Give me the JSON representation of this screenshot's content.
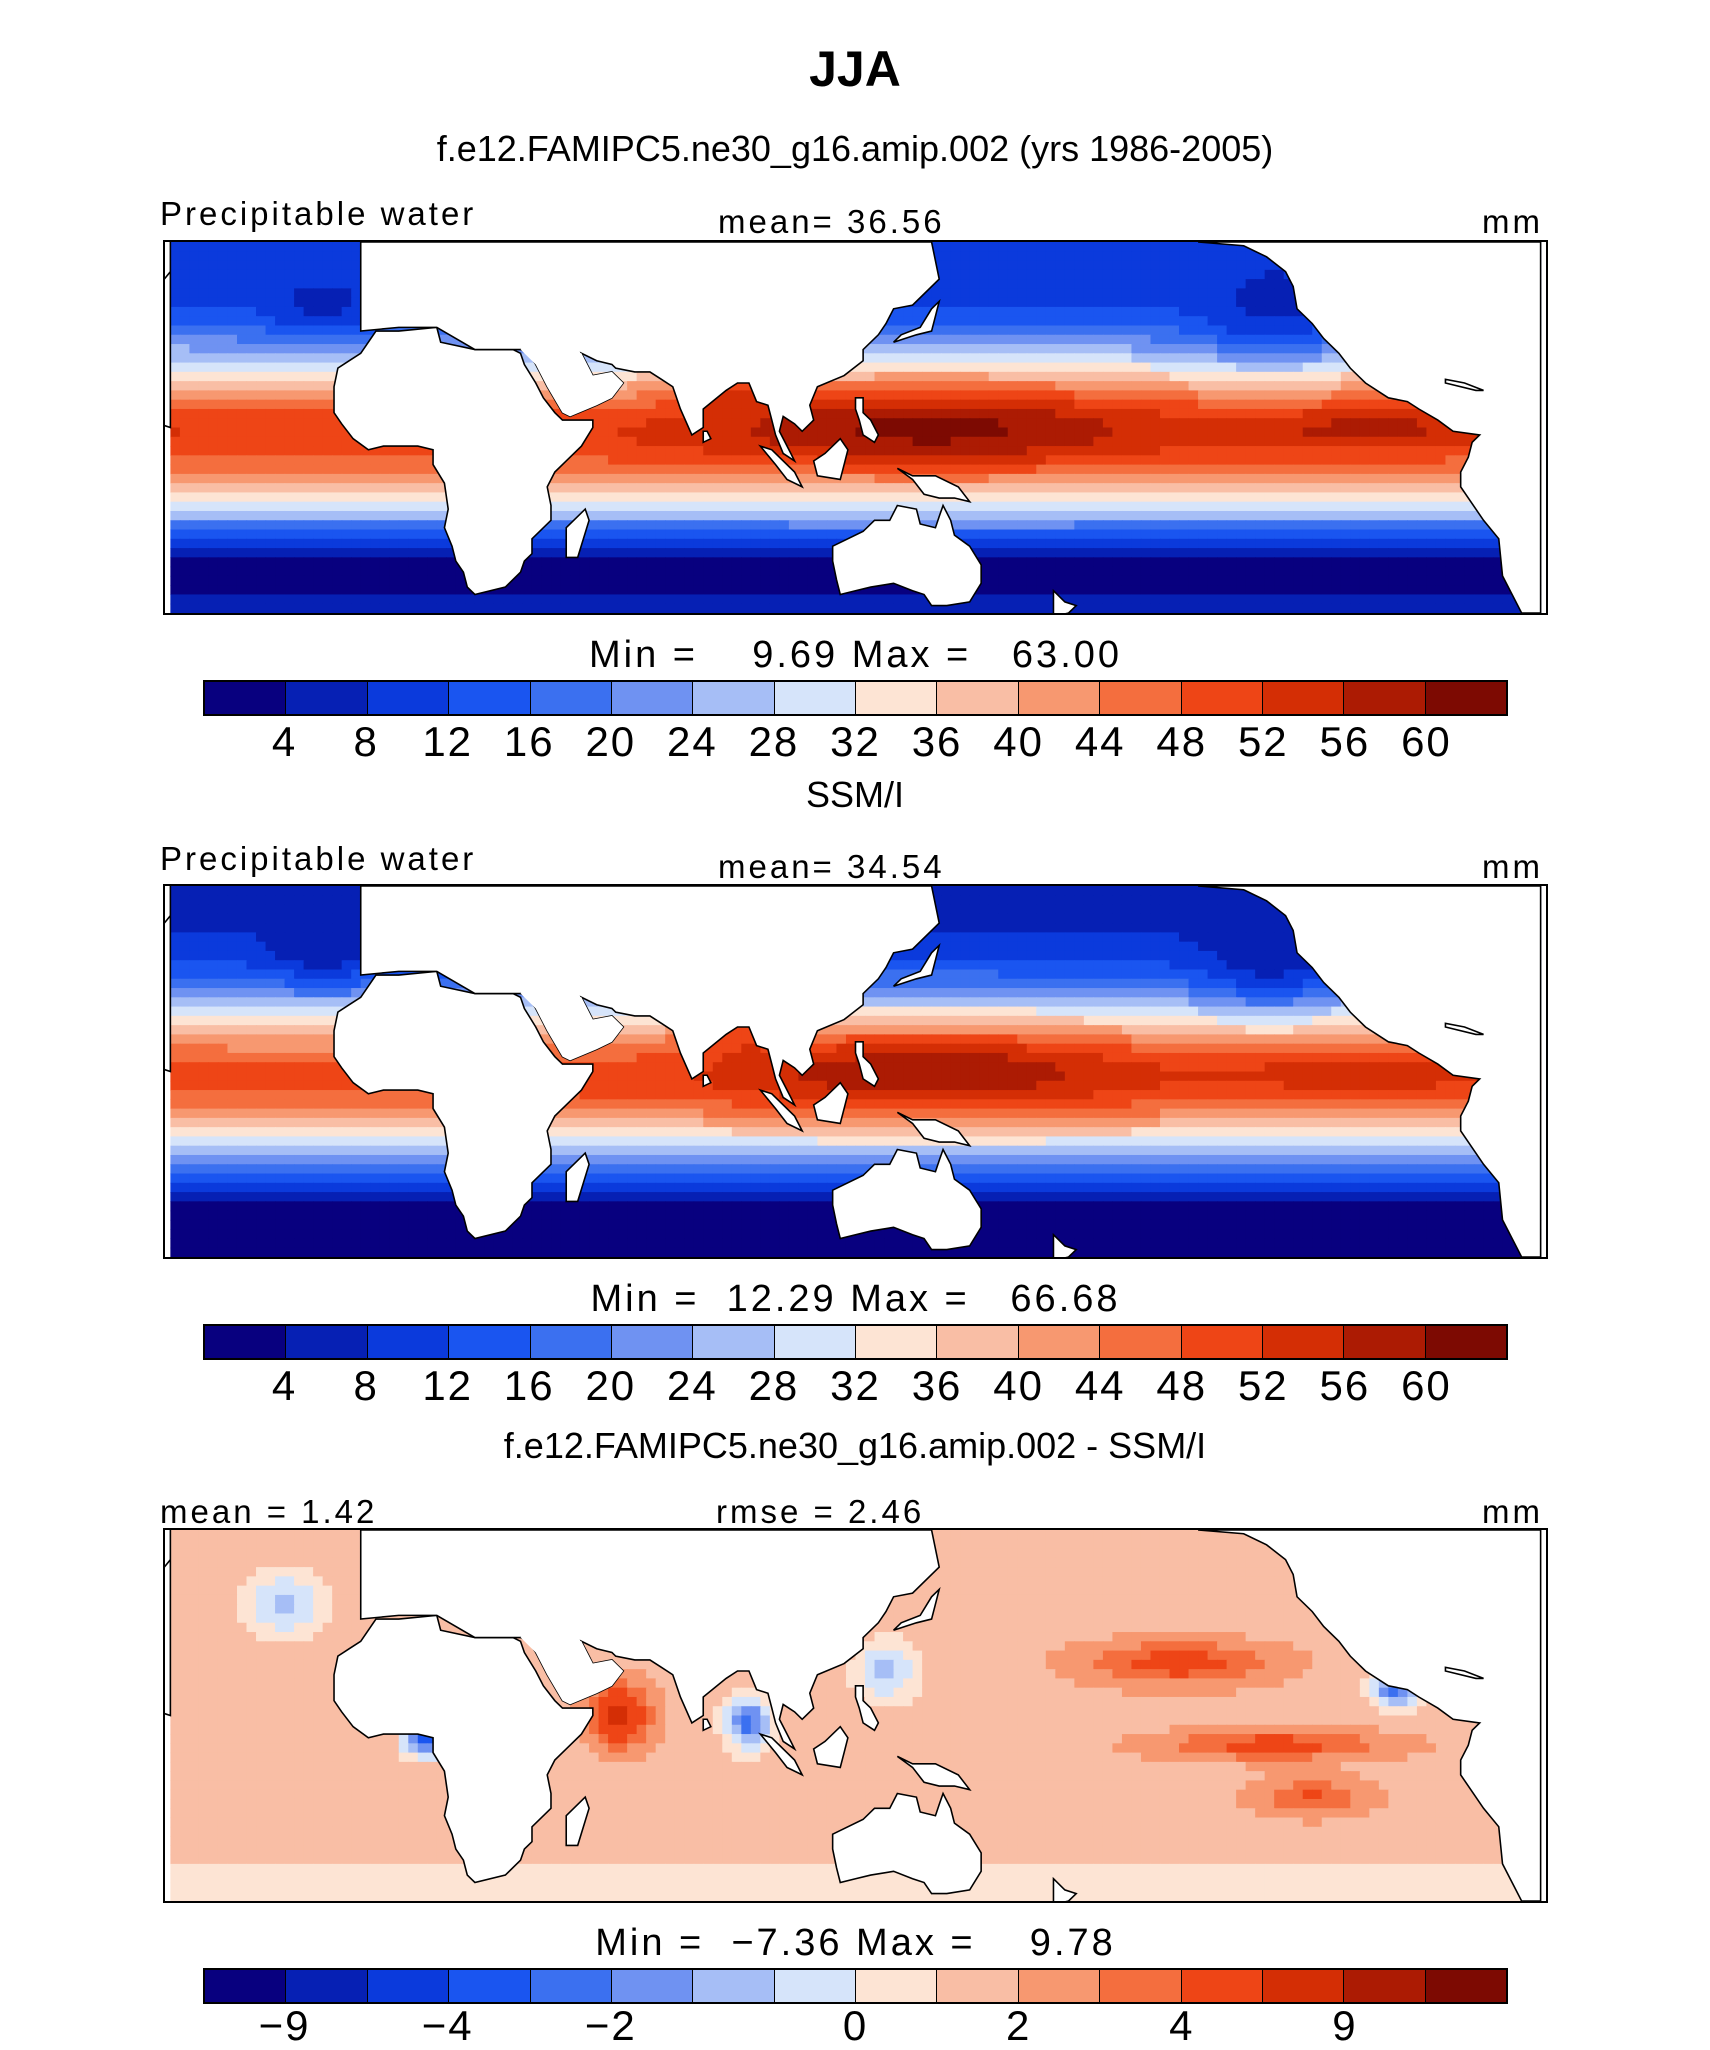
{
  "figure": {
    "title": "JJA"
  },
  "palette": [
    "#08007f",
    "#0620b4",
    "#0b3adc",
    "#1a55f0",
    "#3b70f0",
    "#6f92f2",
    "#a6bef6",
    "#d6e4fa",
    "#fde4d4",
    "#f9bea5",
    "#f79870",
    "#f46e3e",
    "#ee4516",
    "#d42e05",
    "#ac1b03",
    "#7d0a02"
  ],
  "land_color": "#ffffff",
  "panels": [
    {
      "title": "f.e12.FAMIPC5.ne30_g16.amip.002 (yrs 1986-2005)",
      "left_label": "Precipitable water",
      "center_label": "mean=  36.56",
      "right_label": "mm",
      "minmax": "Min =    9.69 Max =   63.00",
      "colorbar_ticks": [
        "4",
        "8",
        "12",
        "16",
        "20",
        "24",
        "28",
        "32",
        "36",
        "40",
        "44",
        "48",
        "52",
        "56",
        "60"
      ]
    },
    {
      "title": "SSM/I",
      "left_label": "Precipitable water",
      "center_label": "mean=  34.54",
      "right_label": "mm",
      "minmax": "Min =  12.29 Max =   66.68",
      "colorbar_ticks": [
        "4",
        "8",
        "12",
        "16",
        "20",
        "24",
        "28",
        "32",
        "36",
        "40",
        "44",
        "48",
        "52",
        "56",
        "60"
      ]
    },
    {
      "title": "f.e12.FAMIPC5.ne30_g16.amip.002 - SSM/I",
      "left_label": "mean =   1.42",
      "center_label": "rmse =   2.46",
      "right_label": "mm",
      "minmax": "Min =  −7.36 Max =    9.78",
      "colorbar_ticks": [
        "−9",
        "−4",
        "−2",
        "0",
        "2",
        "4",
        "9"
      ]
    }
  ],
  "chart_data": [
    {
      "type": "heatmap",
      "title": "f.e12.FAMIPC5.ne30_g16.amip.002 (yrs 1986-2005)",
      "variable": "Precipitable water",
      "units": "mm",
      "mean": 36.56,
      "min": 9.69,
      "max": 63.0,
      "colorbar_levels": [
        4,
        8,
        12,
        16,
        20,
        24,
        28,
        32,
        36,
        40,
        44,
        48,
        52,
        56,
        60
      ],
      "lon_range": [
        -60,
        300
      ],
      "lat_range": [
        -40,
        60
      ]
    },
    {
      "type": "heatmap",
      "title": "SSM/I",
      "variable": "Precipitable water",
      "units": "mm",
      "mean": 34.54,
      "min": 12.29,
      "max": 66.68,
      "colorbar_levels": [
        4,
        8,
        12,
        16,
        20,
        24,
        28,
        32,
        36,
        40,
        44,
        48,
        52,
        56,
        60
      ],
      "lon_range": [
        -60,
        300
      ],
      "lat_range": [
        -40,
        60
      ]
    },
    {
      "type": "heatmap",
      "title": "f.e12.FAMIPC5.ne30_g16.amip.002 - SSM/I",
      "units": "mm",
      "mean": 1.42,
      "rmse": 2.46,
      "min": -7.36,
      "max": 9.78,
      "colorbar_levels": [
        -9,
        -8,
        -6,
        -4,
        -3,
        -2,
        -1,
        0,
        1,
        2,
        3,
        4,
        6,
        8,
        9
      ]
    }
  ]
}
